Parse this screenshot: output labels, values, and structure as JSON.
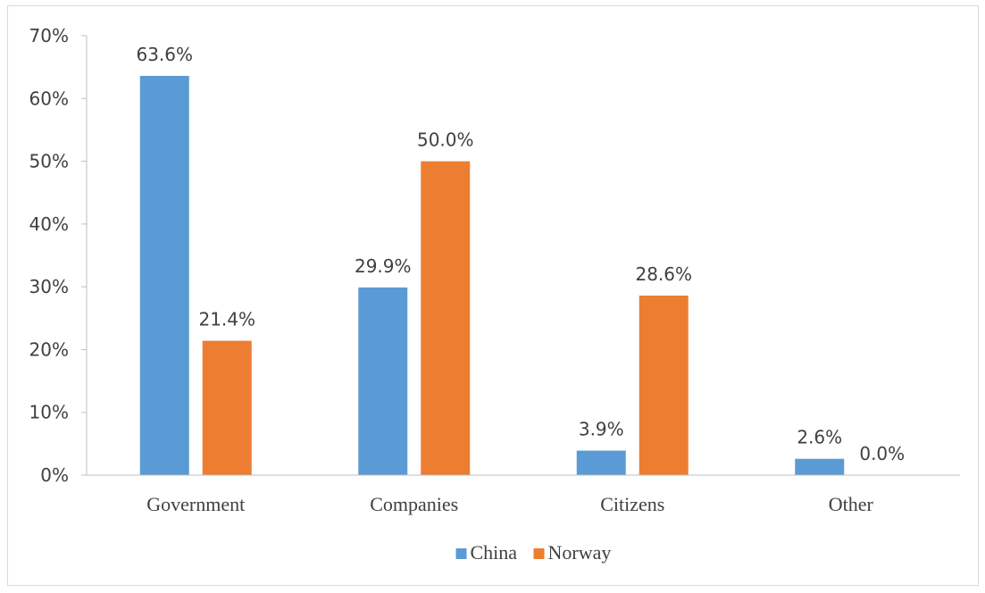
{
  "chart_data": {
    "type": "bar",
    "categories": [
      "Government",
      "Companies",
      "Citizens",
      "Other"
    ],
    "series": [
      {
        "name": "China",
        "values": [
          63.6,
          29.9,
          3.9,
          2.6
        ],
        "labels": [
          "63.6%",
          "29.9%",
          "3.9%",
          "2.6%"
        ],
        "color": "#5b9bd5"
      },
      {
        "name": "Norway",
        "values": [
          21.4,
          50.0,
          28.6,
          0.0
        ],
        "labels": [
          "21.4%",
          "50.0%",
          "28.6%",
          "0.0%"
        ],
        "color": "#ed7d31"
      }
    ],
    "y_ticks": [
      "0%",
      "10%",
      "20%",
      "30%",
      "40%",
      "50%",
      "60%",
      "70%"
    ],
    "ylim": [
      0,
      70
    ],
    "grid": false,
    "legend_position": "bottom",
    "title": "",
    "xlabel": "",
    "ylabel": ""
  }
}
